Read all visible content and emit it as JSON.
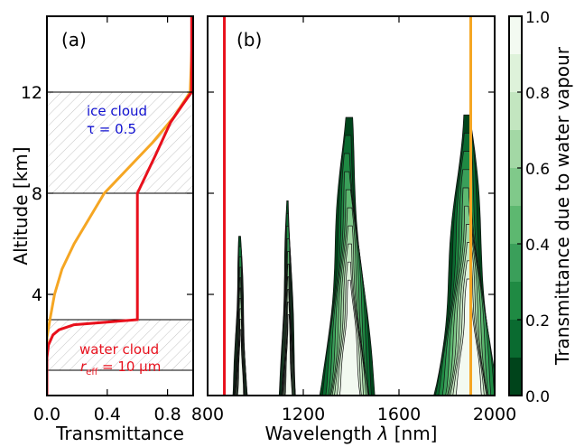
{
  "chart_data": [
    {
      "type": "line",
      "panel": "(a)",
      "xlabel": "Transmittance",
      "ylabel": "Altitude [km]",
      "xlim": [
        0.0,
        0.97
      ],
      "ylim": [
        0,
        15
      ],
      "xticks": [
        "0.0",
        "0.4",
        "0.8"
      ],
      "yticks": [
        "4",
        "8",
        "12"
      ],
      "ice_cloud": {
        "label": "ice cloud",
        "tau_label": "τ = 0.5",
        "bottom": 8,
        "top": 12
      },
      "water_cloud": {
        "label": "water cloud",
        "reff_label": "r",
        "reff_sub": "eff",
        "reff_value": " = 10 µm",
        "bottom": 1,
        "top": 3
      },
      "series": [
        {
          "color": "#f5a623",
          "points": [
            [
              0.0,
              0.0
            ],
            [
              0.0,
              2.3
            ],
            [
              0.02,
              3.0
            ],
            [
              0.05,
              4.0
            ],
            [
              0.1,
              5.0
            ],
            [
              0.18,
              6.0
            ],
            [
              0.28,
              7.0
            ],
            [
              0.38,
              8.0
            ],
            [
              0.54,
              9.0
            ],
            [
              0.7,
              10.0
            ],
            [
              0.84,
              11.0
            ],
            [
              0.95,
              12.0
            ],
            [
              0.96,
              13.5
            ],
            [
              0.97,
              15.0
            ]
          ]
        },
        {
          "color": "#e8101c",
          "points": [
            [
              0.0,
              0.0
            ],
            [
              0.0,
              1.5
            ],
            [
              0.01,
              2.0
            ],
            [
              0.04,
              2.4
            ],
            [
              0.08,
              2.6
            ],
            [
              0.18,
              2.8
            ],
            [
              0.6,
              3.0
            ],
            [
              0.6,
              8.0
            ],
            [
              0.72,
              9.5
            ],
            [
              0.82,
              10.8
            ],
            [
              0.9,
              11.5
            ],
            [
              0.96,
              12.0
            ],
            [
              0.96,
              15.0
            ]
          ]
        }
      ]
    },
    {
      "type": "heatmap",
      "panel": "(b)",
      "xlabel": "Wavelength λ [nm]",
      "xlim": [
        800,
        2000
      ],
      "ylim": [
        0,
        15
      ],
      "xticks": [
        "800",
        "1200",
        "1600",
        "2000"
      ],
      "colorbar": {
        "label": "Transmittance due to water vapour",
        "ticks": [
          "0.0",
          "0.2",
          "0.4",
          "0.6",
          "0.8",
          "1.0"
        ],
        "levels": [
          0.0,
          0.1,
          0.2,
          0.3,
          0.4,
          0.5,
          0.6,
          0.7,
          0.8,
          0.9,
          1.0
        ],
        "colors": [
          "#00441b",
          "#0a6b30",
          "#1f8a43",
          "#3a9f5a",
          "#5db870",
          "#80c98a",
          "#a3d8a5",
          "#c3e6c0",
          "#def2da",
          "#f3faf1"
        ]
      },
      "bands": [
        {
          "center": 935,
          "width_bottom": 60,
          "height": 6.3
        },
        {
          "center": 1135,
          "width_bottom": 70,
          "height": 7.7
        },
        {
          "center": 1385,
          "width_bottom": 220,
          "height": 11.0
        },
        {
          "center": 1880,
          "width_bottom": 260,
          "height": 11.1
        }
      ],
      "vlines": [
        {
          "x": 870,
          "color": "#e8101c"
        },
        {
          "x": 1900,
          "color": "#f5a623"
        }
      ]
    }
  ]
}
